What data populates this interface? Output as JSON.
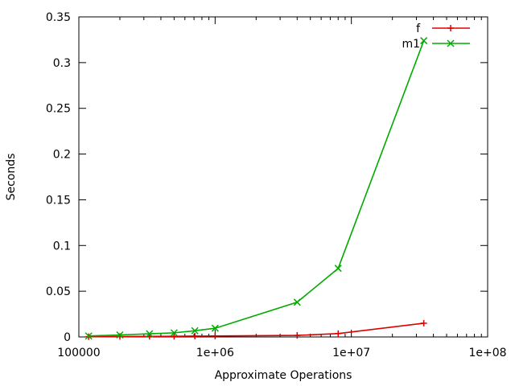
{
  "chart_data": {
    "type": "line",
    "title": "",
    "xlabel": "Approximate Operations",
    "ylabel": "Seconds",
    "x_scale": "log",
    "xlim": [
      100000,
      100000000
    ],
    "ylim": [
      0,
      0.35
    ],
    "x_ticks": [
      {
        "value": 100000,
        "label": "100000"
      },
      {
        "value": 1000000,
        "label": "1e+06"
      },
      {
        "value": 10000000,
        "label": "1e+07"
      },
      {
        "value": 100000000,
        "label": "1e+08"
      }
    ],
    "y_ticks": [
      {
        "value": 0,
        "label": "0"
      },
      {
        "value": 0.05,
        "label": "0.05"
      },
      {
        "value": 0.1,
        "label": "0.1"
      },
      {
        "value": 0.15,
        "label": "0.15"
      },
      {
        "value": 0.2,
        "label": "0.2"
      },
      {
        "value": 0.25,
        "label": "0.25"
      },
      {
        "value": 0.3,
        "label": "0.3"
      },
      {
        "value": 0.35,
        "label": "0.35"
      }
    ],
    "grid": false,
    "legend_position": "top-right",
    "series": [
      {
        "name": "f",
        "color": "#dd0000",
        "marker": "plus",
        "x": [
          118000,
          200000,
          330000,
          500000,
          710000,
          1000000,
          4000000,
          8000000,
          34000000
        ],
        "y": [
          0.0003,
          0.0005,
          0.0006,
          0.0007,
          0.0009,
          0.001,
          0.0017,
          0.0037,
          0.015
        ]
      },
      {
        "name": "m1",
        "color": "#00aa00",
        "marker": "cross",
        "x": [
          118000,
          200000,
          330000,
          500000,
          710000,
          1000000,
          4000000,
          8000000,
          34000000
        ],
        "y": [
          0.001,
          0.0022,
          0.0035,
          0.0045,
          0.0068,
          0.0095,
          0.038,
          0.075,
          0.324
        ]
      }
    ]
  }
}
